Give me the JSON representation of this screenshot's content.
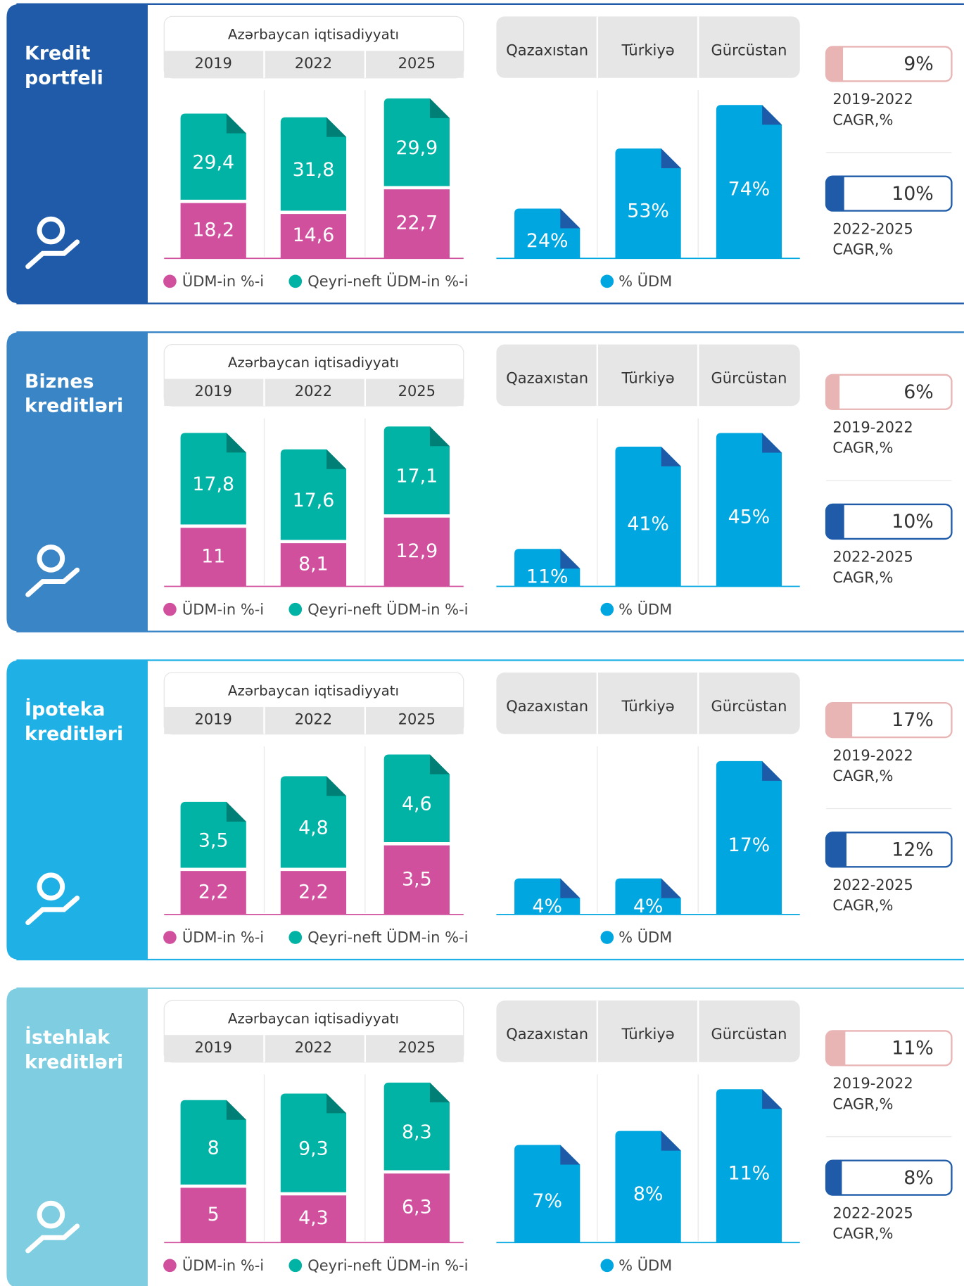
{
  "panels": [
    {
      "title_lines": [
        "Kredit",
        "portfeli"
      ],
      "color": "#1f5ba8",
      "left": {
        "type": "bar",
        "title": "Azərbaycan iqtisadiyyatı",
        "categories": [
          "2019",
          "2022",
          "2025"
        ],
        "series": [
          {
            "name": "ÜDM-in %-i",
            "color": "#d1509e",
            "values": [
              18.2,
              14.6,
              22.7
            ],
            "value_labels": [
              "18,2",
              "14,6",
              "22,7"
            ]
          },
          {
            "name": "Qeyri-neft ÜDM-in %-i",
            "color": "#00b3a4",
            "values": [
              29.4,
              31.8,
              29.9
            ],
            "value_labels": [
              "29,4",
              "31,8",
              "29,9"
            ]
          }
        ]
      },
      "right": {
        "type": "bar",
        "categories": [
          "Qazaxıstan",
          "Türkiyə",
          "Gürcüstan"
        ],
        "series": [
          {
            "name": "% ÜDM",
            "color": "#00a6e0",
            "values": [
              24,
              53,
              74
            ],
            "value_labels": [
              "24%",
              "53%",
              "74%"
            ]
          }
        ]
      },
      "cagr": [
        {
          "value": 9,
          "label": "9%",
          "period": "2019-2022",
          "unit": "CAGR,%",
          "color": "#e8b4b4"
        },
        {
          "value": 10,
          "label": "10%",
          "period": "2022-2025",
          "unit": "CAGR,%",
          "color": "#1f5ba8"
        }
      ]
    },
    {
      "title_lines": [
        "Biznes",
        "kreditləri"
      ],
      "color": "#3a85c6",
      "left": {
        "type": "bar",
        "title": "Azərbaycan iqtisadiyyatı",
        "categories": [
          "2019",
          "2022",
          "2025"
        ],
        "series": [
          {
            "name": "ÜDM-in %-i",
            "color": "#d1509e",
            "values": [
              11,
              8.1,
              12.9
            ],
            "value_labels": [
              "11",
              "8,1",
              "12,9"
            ]
          },
          {
            "name": "Qeyri-neft ÜDM-in %-i",
            "color": "#00b3a4",
            "values": [
              17.8,
              17.6,
              17.1
            ],
            "value_labels": [
              "17,8",
              "17,6",
              "17,1"
            ]
          }
        ]
      },
      "right": {
        "type": "bar",
        "categories": [
          "Qazaxıstan",
          "Türkiyə",
          "Gürcüstan"
        ],
        "series": [
          {
            "name": "% ÜDM",
            "color": "#00a6e0",
            "values": [
              11,
              41,
              45
            ],
            "value_labels": [
              "11%",
              "41%",
              "45%"
            ]
          }
        ]
      },
      "cagr": [
        {
          "value": 6,
          "label": "6%",
          "period": "2019-2022",
          "unit": "CAGR,%",
          "color": "#e8b4b4"
        },
        {
          "value": 10,
          "label": "10%",
          "period": "2022-2025",
          "unit": "CAGR,%",
          "color": "#1f5ba8"
        }
      ]
    },
    {
      "title_lines": [
        "İpoteka",
        "kreditləri"
      ],
      "color": "#1fb0e6",
      "left": {
        "type": "bar",
        "title": "Azərbaycan iqtisadiyyatı",
        "categories": [
          "2019",
          "2022",
          "2025"
        ],
        "series": [
          {
            "name": "ÜDM-in %-i",
            "color": "#d1509e",
            "values": [
              2.2,
              2.2,
              3.5
            ],
            "value_labels": [
              "2,2",
              "2,2",
              "3,5"
            ]
          },
          {
            "name": "Qeyri-neft ÜDM-in %-i",
            "color": "#00b3a4",
            "values": [
              3.5,
              4.8,
              4.6
            ],
            "value_labels": [
              "3,5",
              "4,8",
              "4,6"
            ]
          }
        ]
      },
      "right": {
        "type": "bar",
        "categories": [
          "Qazaxıstan",
          "Türkiyə",
          "Gürcüstan"
        ],
        "series": [
          {
            "name": "% ÜDM",
            "color": "#00a6e0",
            "values": [
              4,
              4,
              17
            ],
            "value_labels": [
              "4%",
              "4%",
              "17%"
            ]
          }
        ]
      },
      "cagr": [
        {
          "value": 17,
          "label": "17%",
          "period": "2019-2022",
          "unit": "CAGR,%",
          "color": "#e8b4b4"
        },
        {
          "value": 12,
          "label": "12%",
          "period": "2022-2025",
          "unit": "CAGR,%",
          "color": "#1f5ba8"
        }
      ]
    },
    {
      "title_lines": [
        "İstehlak",
        "kreditləri"
      ],
      "color": "#7fcde0",
      "left": {
        "type": "bar",
        "title": "Azərbaycan iqtisadiyyatı",
        "categories": [
          "2019",
          "2022",
          "2025"
        ],
        "series": [
          {
            "name": "ÜDM-in %-i",
            "color": "#d1509e",
            "values": [
              5,
              4.3,
              6.3
            ],
            "value_labels": [
              "5",
              "4,3",
              "6,3"
            ]
          },
          {
            "name": "Qeyri-neft ÜDM-in %-i",
            "color": "#00b3a4",
            "values": [
              8,
              9.3,
              8.3
            ],
            "value_labels": [
              "8",
              "9,3",
              "8,3"
            ]
          }
        ]
      },
      "right": {
        "type": "bar",
        "categories": [
          "Qazaxıstan",
          "Türkiyə",
          "Gürcüstan"
        ],
        "series": [
          {
            "name": "% ÜDM",
            "color": "#00a6e0",
            "values": [
              7,
              8,
              11
            ],
            "value_labels": [
              "7%",
              "8%",
              "11%"
            ]
          }
        ]
      },
      "cagr": [
        {
          "value": 11,
          "label": "11%",
          "period": "2019-2022",
          "unit": "CAGR,%",
          "color": "#e8b4b4"
        },
        {
          "value": 8,
          "label": "8%",
          "period": "2022-2025",
          "unit": "CAGR,%",
          "color": "#1f5ba8"
        }
      ]
    }
  ]
}
